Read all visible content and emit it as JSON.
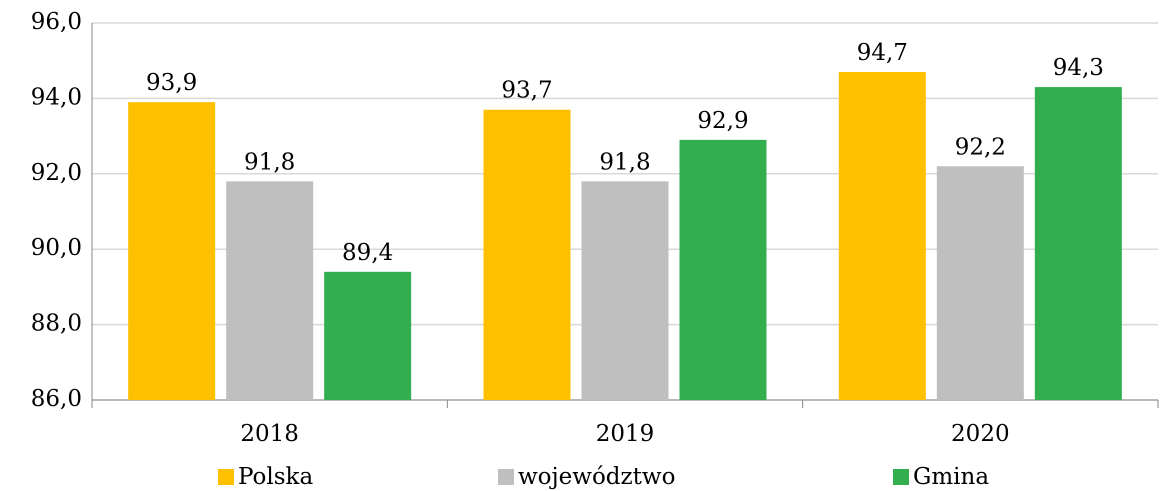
{
  "chart_data": {
    "type": "bar",
    "categories": [
      "2018",
      "2019",
      "2020"
    ],
    "series": [
      {
        "name": "Polska",
        "color": "#ffc000",
        "values": [
          93.9,
          93.7,
          94.7
        ],
        "value_labels": [
          "93,9",
          "93,7",
          "94,7"
        ]
      },
      {
        "name": "województwo",
        "color": "#bfbfbf",
        "values": [
          91.8,
          91.8,
          92.2
        ],
        "value_labels": [
          "91,8",
          "91,8",
          "92,2"
        ]
      },
      {
        "name": "Gmina",
        "color": "#33ae4f",
        "values": [
          89.4,
          92.9,
          94.3
        ],
        "value_labels": [
          "89,4",
          "92,9",
          "94,3"
        ]
      }
    ],
    "ylim": [
      86,
      96
    ],
    "yticks": [
      {
        "value": 86,
        "label": "86,0"
      },
      {
        "value": 88,
        "label": "88,0"
      },
      {
        "value": 90,
        "label": "90,0"
      },
      {
        "value": 92,
        "label": "92,0"
      },
      {
        "value": 94,
        "label": "94,0"
      },
      {
        "value": 96,
        "label": "96,0"
      }
    ],
    "grid": true,
    "legend": "bottom"
  }
}
